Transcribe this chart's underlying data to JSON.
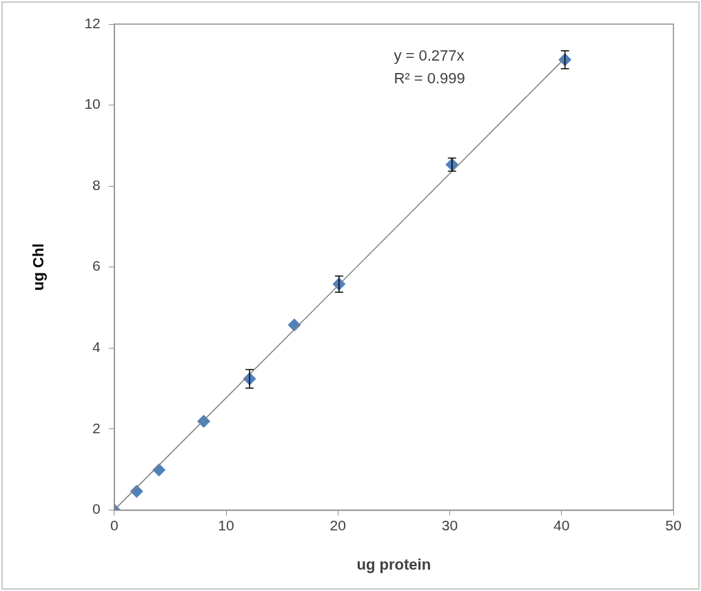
{
  "chart_data": {
    "type": "scatter",
    "xlabel": "ug protein",
    "ylabel": "ug Chl",
    "annotations": [
      "y = 0.277x",
      "R² = 0.999"
    ],
    "xlim": [
      0,
      50
    ],
    "xticks": [
      0,
      10,
      20,
      30,
      40,
      50
    ],
    "ylim": [
      0,
      12
    ],
    "yticks": [
      0,
      2,
      4,
      6,
      8,
      10,
      12
    ],
    "grid": false,
    "legend": false,
    "marker": "diamond",
    "series": [
      {
        "color": "#4f81bd",
        "x": [
          0,
          2,
          4,
          8,
          12.1,
          16.1,
          20.1,
          30.2,
          40.3
        ],
        "values": [
          0,
          0.46,
          0.99,
          2.19,
          3.24,
          4.57,
          5.58,
          8.53,
          11.12
        ],
        "errors": [
          null,
          null,
          null,
          null,
          0.23,
          null,
          0.2,
          0.16,
          0.22
        ]
      },
      {
        "type": "line",
        "color": "#808080",
        "x": [
          0,
          40.3
        ],
        "values": [
          0,
          11.16
        ],
        "marker": "none",
        "line_style": "solid"
      }
    ]
  }
}
